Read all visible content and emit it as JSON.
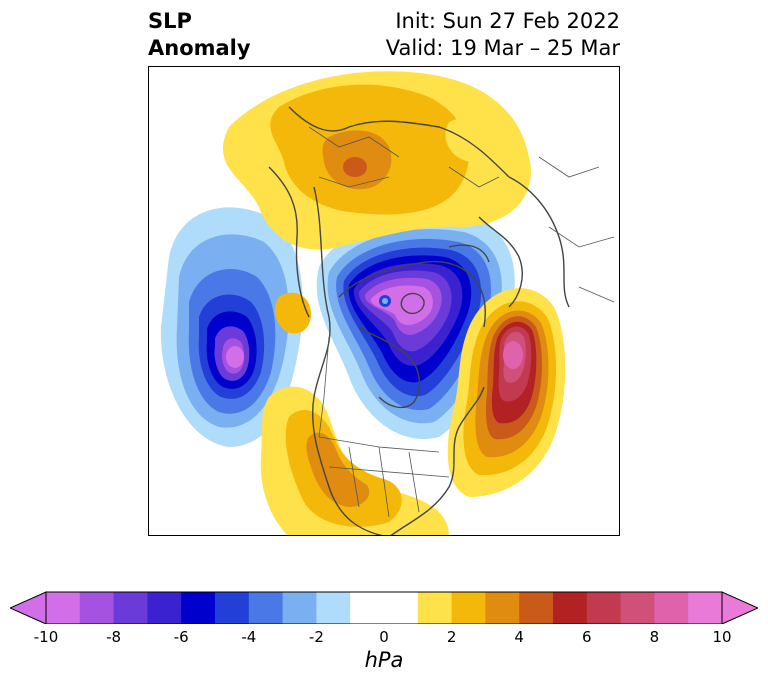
{
  "title": {
    "left_line1": "SLP",
    "left_line2": "Anomaly",
    "right_line1": "Init: Sun 27 Feb 2022",
    "right_line2": "Valid: 19 Mar – 25 Mar"
  },
  "colorbar": {
    "units": "hPa",
    "min": -10,
    "max": 10,
    "step": 1.25,
    "extend": "both",
    "tick_labels": [
      "-10",
      "-8",
      "-6",
      "-4",
      "-2",
      "0",
      "2",
      "4",
      "6",
      "8",
      "10"
    ],
    "colors": [
      "#d16ee8",
      "#a552e0",
      "#6a3bd8",
      "#3a22d0",
      "#0000cc",
      "#2240d8",
      "#4a78e6",
      "#7ab0f2",
      "#aedcfa",
      "#ffffff",
      "#ffffff",
      "#ffe14a",
      "#f3b80a",
      "#df8c10",
      "#c95a1a",
      "#b22222",
      "#c23a50",
      "#d0507a",
      "#df62ab",
      "#e97ad8"
    ]
  },
  "map": {
    "projection": "polar-stereographic",
    "region": "North America and North Pacific / North Atlantic",
    "variable": "Sea-level pressure anomaly"
  }
}
